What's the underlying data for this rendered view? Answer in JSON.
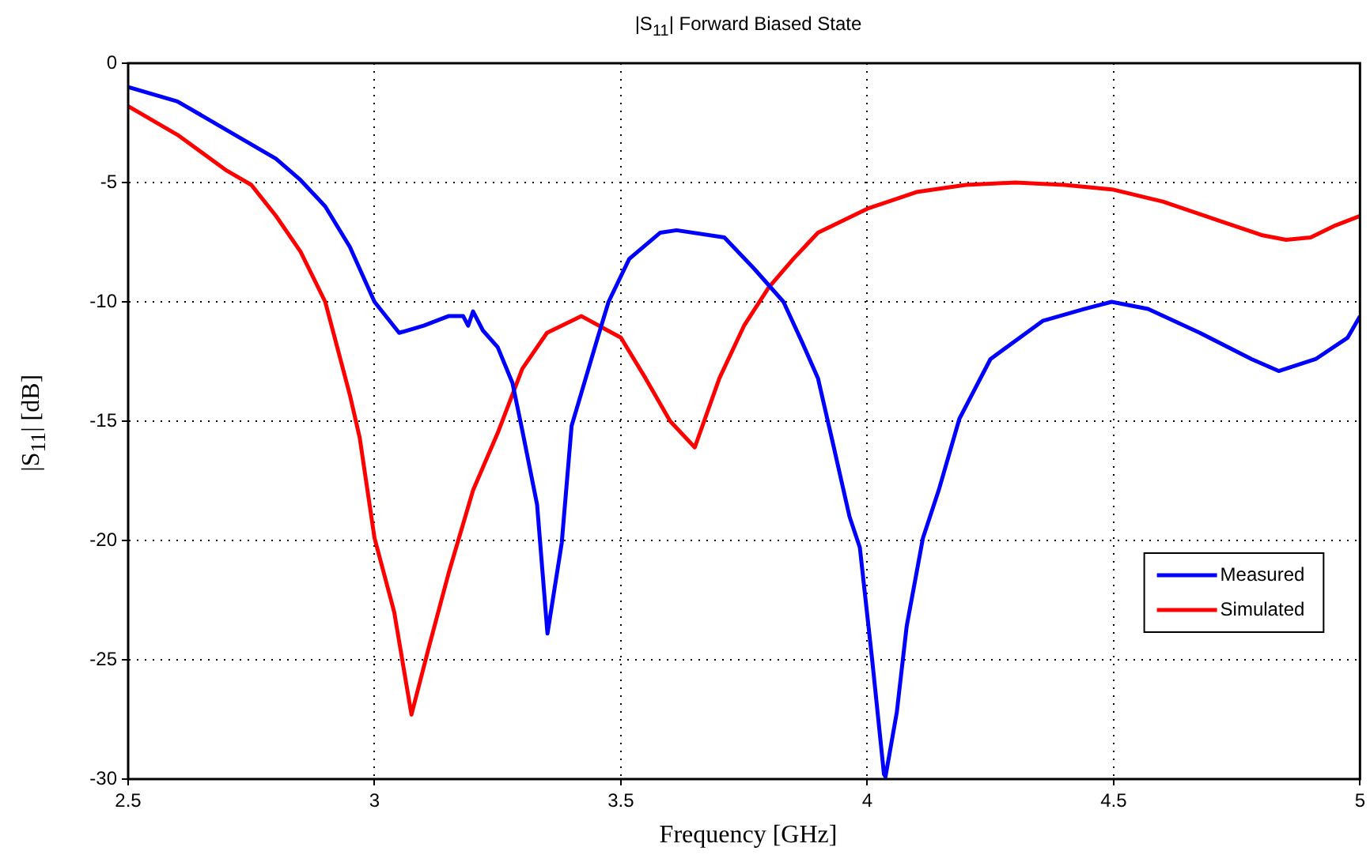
{
  "chart_data": {
    "type": "line",
    "title": "|S$_{11}$| Forward Biased State",
    "xlabel": "Frequency [GHz]",
    "ylabel": "|S$_{11}$| [dB]",
    "xlim": [
      2.5,
      5
    ],
    "ylim": [
      -30,
      0
    ],
    "xticks": [
      2.5,
      3,
      3.5,
      4,
      4.5,
      5
    ],
    "yticks": [
      -30,
      -25,
      -20,
      -15,
      -10,
      -5,
      0
    ],
    "grid": true,
    "legend": "bottom right",
    "line_style": "solid",
    "marker": "none",
    "series": [
      {
        "name": "Measured",
        "color": "#0000ff",
        "x": [
          2.5,
          2.6,
          2.7,
          2.8,
          2.85,
          2.9,
          2.95,
          3.0,
          3.05,
          3.1,
          3.15,
          3.18,
          3.19,
          3.2,
          3.22,
          3.25,
          3.28,
          3.3,
          3.33,
          3.351,
          3.38,
          3.4,
          3.453,
          3.475,
          3.517,
          3.58,
          3.613,
          3.71,
          3.77,
          3.83,
          3.868,
          3.9,
          3.93,
          3.964,
          3.985,
          4.01,
          4.034,
          4.037,
          4.06,
          4.08,
          4.113,
          4.145,
          4.187,
          4.25,
          4.356,
          4.44,
          4.496,
          4.57,
          4.675,
          4.78,
          4.835,
          4.91,
          4.975,
          5.0
        ],
        "values": [
          -1.0,
          -1.6,
          -2.8,
          -4.0,
          -4.9,
          -6.0,
          -7.7,
          -10.0,
          -11.3,
          -11.0,
          -10.6,
          -10.6,
          -11.0,
          -10.4,
          -11.2,
          -11.9,
          -13.4,
          -15.4,
          -18.5,
          -23.9,
          -20.1,
          -15.2,
          -11.5,
          -10.0,
          -8.2,
          -7.1,
          -7.0,
          -7.3,
          -8.6,
          -10.0,
          -11.7,
          -13.2,
          -15.9,
          -19.0,
          -20.3,
          -25.0,
          -29.8,
          -29.9,
          -27.2,
          -23.6,
          -19.9,
          -17.9,
          -14.9,
          -12.4,
          -10.8,
          -10.3,
          -10.0,
          -10.3,
          -11.3,
          -12.4,
          -12.9,
          -12.4,
          -11.5,
          -10.6
        ]
      },
      {
        "name": "Simulated",
        "color": "#ff0000",
        "x": [
          2.5,
          2.6,
          2.7,
          2.75,
          2.8,
          2.85,
          2.9,
          2.95,
          2.97,
          3.0,
          3.04,
          3.075,
          3.11,
          3.15,
          3.2,
          3.25,
          3.3,
          3.35,
          3.42,
          3.5,
          3.55,
          3.6,
          3.65,
          3.7,
          3.75,
          3.8,
          3.85,
          3.9,
          4.0,
          4.1,
          4.2,
          4.3,
          4.4,
          4.5,
          4.6,
          4.7,
          4.8,
          4.85,
          4.9,
          4.95,
          5.0
        ],
        "values": [
          -1.8,
          -3.0,
          -4.5,
          -5.1,
          -6.4,
          -7.9,
          -10.0,
          -13.9,
          -15.7,
          -19.9,
          -23.0,
          -27.3,
          -24.5,
          -21.4,
          -17.9,
          -15.5,
          -12.8,
          -11.3,
          -10.6,
          -11.5,
          -13.2,
          -15.0,
          -16.1,
          -13.2,
          -11.0,
          -9.4,
          -8.2,
          -7.1,
          -6.1,
          -5.4,
          -5.1,
          -5.0,
          -5.1,
          -5.3,
          -5.8,
          -6.5,
          -7.2,
          -7.4,
          -7.3,
          -6.8,
          -6.4
        ]
      }
    ]
  }
}
